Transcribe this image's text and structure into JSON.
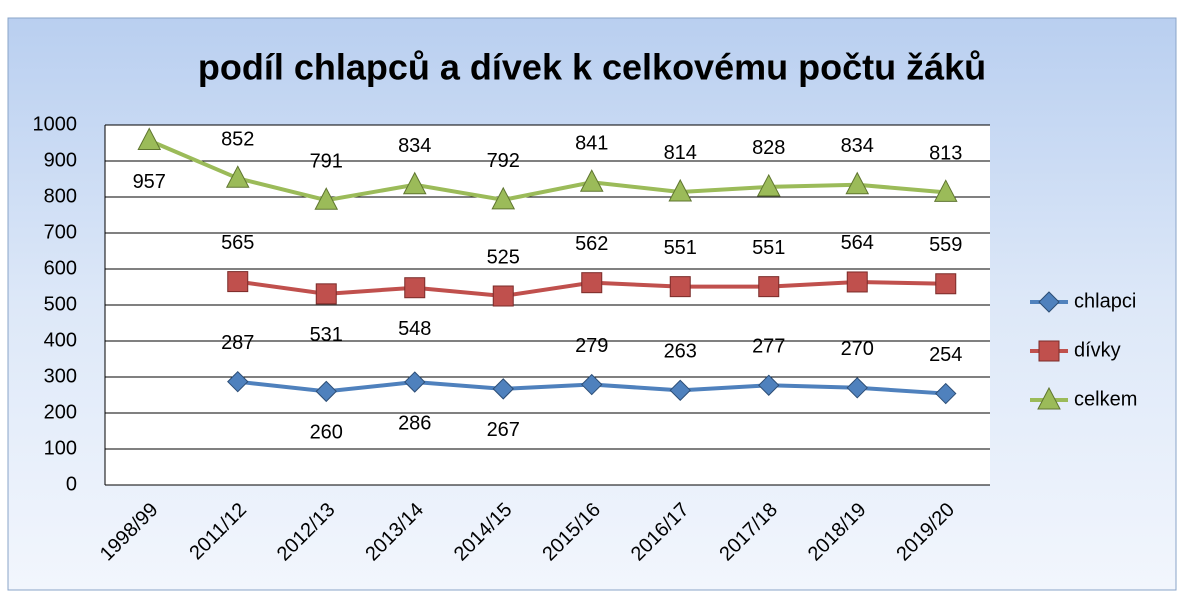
{
  "chart_data": {
    "type": "line",
    "title": "podíl chlapců a dívek k celkovému počtu žáků",
    "categories": [
      "1998/99",
      "2011/12",
      "2012/13",
      "2013/14",
      "2014/15",
      "2015/16",
      "2016/17",
      "2017/18",
      "2018/19",
      "2019/20"
    ],
    "series": [
      {
        "name": "chlapci",
        "color": "#4f81bd",
        "marker": "diamond",
        "values": [
          null,
          287,
          260,
          286,
          267,
          279,
          263,
          277,
          270,
          254
        ]
      },
      {
        "name": "dívky",
        "color": "#c0504d",
        "marker": "square",
        "values": [
          null,
          565,
          531,
          548,
          525,
          562,
          551,
          551,
          564,
          559
        ]
      },
      {
        "name": "celkem",
        "color": "#9bbb59",
        "marker": "triangle",
        "values": [
          957,
          852,
          791,
          834,
          792,
          841,
          814,
          828,
          834,
          813
        ]
      }
    ],
    "ylim": [
      0,
      1000
    ],
    "yticks": [
      0,
      100,
      200,
      300,
      400,
      500,
      600,
      700,
      800,
      900,
      1000
    ],
    "grid": true,
    "legend": "right"
  }
}
